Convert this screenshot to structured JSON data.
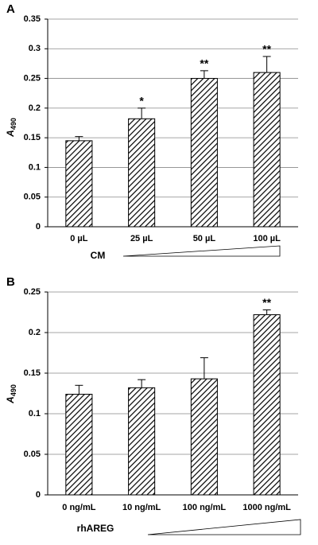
{
  "chart_data": [
    {
      "type": "bar",
      "panel": "A",
      "y_label_base": "A",
      "y_label_subscript": "490",
      "x_label": "CM",
      "categories": [
        "0 µL",
        "25 µL",
        "50 µL",
        "100 µL"
      ],
      "values": [
        0.145,
        0.182,
        0.25,
        0.26
      ],
      "errors": [
        0.007,
        0.018,
        0.013,
        0.027
      ],
      "annotations": [
        null,
        "*",
        "**",
        "**"
      ],
      "ylim": [
        0,
        0.35
      ],
      "yticks": [
        0,
        0.05,
        0.1,
        0.15,
        0.2,
        0.25,
        0.3,
        0.35
      ],
      "grid": true,
      "color": "#000000"
    },
    {
      "type": "bar",
      "panel": "B",
      "y_label_base": "A",
      "y_label_subscript": "490",
      "x_label": "rhAREG",
      "categories": [
        "0 ng/mL",
        "10 ng/mL",
        "100 ng/mL",
        "1000 ng/mL"
      ],
      "values": [
        0.124,
        0.132,
        0.143,
        0.222
      ],
      "errors": [
        0.011,
        0.01,
        0.026,
        0.006
      ],
      "annotations": [
        null,
        null,
        null,
        "**"
      ],
      "ylim": [
        0,
        0.25
      ],
      "yticks": [
        0,
        0.05,
        0.1,
        0.15,
        0.2,
        0.25
      ],
      "grid": true,
      "color": "#000000"
    }
  ]
}
